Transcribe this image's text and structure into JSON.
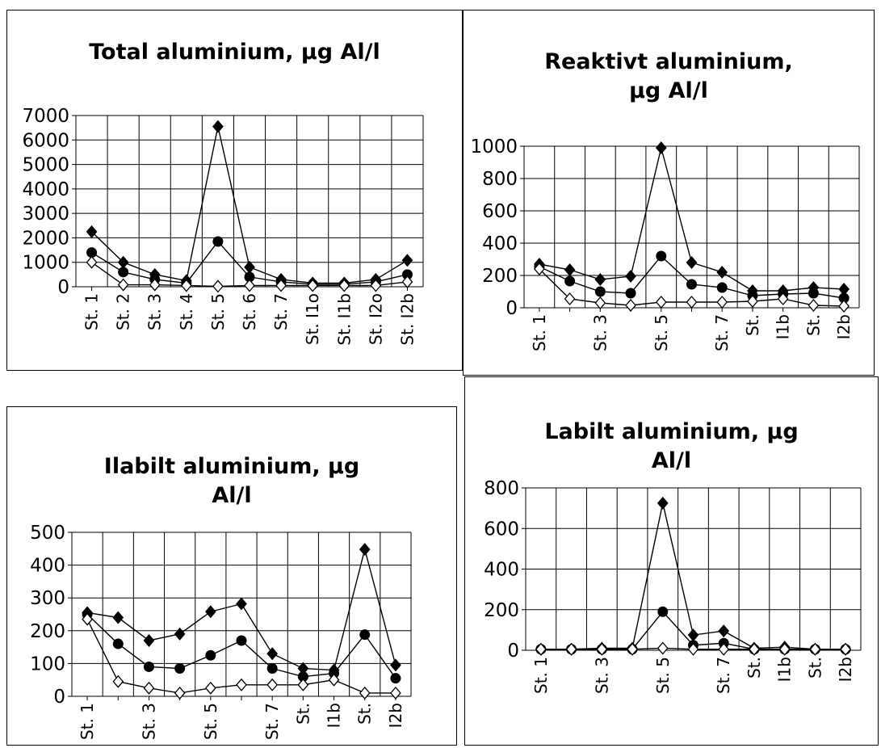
{
  "chart_data": [
    {
      "type": "line",
      "title_lines": [
        "Total aluminium, µg Al/l"
      ],
      "categories": [
        "St. 1",
        "St. 2",
        "St. 3",
        "St. 4",
        "St. 5",
        "St. 6",
        "St. 7",
        "St. I1o",
        "St. I1b",
        "St. I2o",
        "St. I2b"
      ],
      "y_ticks": [
        "0",
        "1000",
        "2000",
        "3000",
        "4000",
        "5000",
        "6000",
        "7000"
      ],
      "ylim": [
        0,
        7000
      ],
      "grid": true,
      "series": [
        {
          "marker": "filled-diamond",
          "values": [
            2250,
            1000,
            500,
            250,
            6550,
            800,
            300,
            150,
            150,
            300,
            1080
          ]
        },
        {
          "marker": "filled-circle",
          "values": [
            1400,
            600,
            300,
            150,
            1850,
            400,
            200,
            100,
            100,
            200,
            500
          ]
        },
        {
          "marker": "open-diamond",
          "values": [
            1000,
            80,
            80,
            50,
            20,
            50,
            50,
            50,
            50,
            50,
            200
          ]
        }
      ]
    },
    {
      "type": "line",
      "title_lines": [
        "Reaktivt aluminium,",
        "µg Al/l"
      ],
      "categories": [
        "St. 1",
        "",
        "St. 3",
        "",
        "St. 5",
        "",
        "St. 7",
        "St.",
        "I1b",
        "St.",
        "I2b"
      ],
      "y_ticks": [
        "0",
        "200",
        "400",
        "600",
        "800",
        "1000"
      ],
      "ylim": [
        0,
        1000
      ],
      "grid": true,
      "series": [
        {
          "marker": "filled-diamond",
          "values": [
            270,
            235,
            175,
            195,
            990,
            280,
            220,
            105,
            105,
            125,
            115
          ]
        },
        {
          "marker": "filled-circle",
          "values": [
            255,
            165,
            100,
            90,
            320,
            145,
            125,
            75,
            85,
            90,
            60
          ]
        },
        {
          "marker": "open-diamond",
          "values": [
            240,
            55,
            30,
            15,
            35,
            35,
            35,
            40,
            55,
            15,
            10
          ]
        }
      ]
    },
    {
      "type": "line",
      "title_lines": [
        "Ilabilt aluminium, µg",
        "Al/l"
      ],
      "categories": [
        "St. 1",
        "",
        "St. 3",
        "",
        "St. 5",
        "",
        "St. 7",
        "St.",
        "I1b",
        "St.",
        "I2b"
      ],
      "y_ticks": [
        "0",
        "100",
        "200",
        "300",
        "400",
        "500"
      ],
      "ylim": [
        0,
        500
      ],
      "grid": true,
      "series": [
        {
          "marker": "filled-diamond",
          "values": [
            255,
            240,
            170,
            190,
            258,
            282,
            130,
            85,
            80,
            448,
            95
          ]
        },
        {
          "marker": "filled-circle",
          "values": [
            250,
            160,
            90,
            85,
            125,
            170,
            85,
            60,
            70,
            188,
            55
          ]
        },
        {
          "marker": "open-diamond",
          "values": [
            235,
            45,
            25,
            10,
            25,
            35,
            35,
            35,
            50,
            10,
            10
          ]
        }
      ]
    },
    {
      "type": "line",
      "title_lines": [
        "Labilt aluminium, µg",
        "Al/l"
      ],
      "categories": [
        "St. 1",
        "",
        "St. 3",
        "",
        "St. 5",
        "",
        "St. 7",
        "St.",
        "I1b",
        "St.",
        "I2b"
      ],
      "y_ticks": [
        "0",
        "200",
        "400",
        "600",
        "800"
      ],
      "ylim": [
        0,
        800
      ],
      "grid": true,
      "series": [
        {
          "marker": "filled-diamond",
          "values": [
            5,
            5,
            10,
            10,
            725,
            75,
            95,
            10,
            15,
            5,
            5
          ]
        },
        {
          "marker": "filled-circle",
          "values": [
            5,
            5,
            5,
            5,
            190,
            25,
            35,
            5,
            5,
            5,
            5
          ]
        },
        {
          "marker": "open-diamond",
          "values": [
            5,
            5,
            5,
            5,
            10,
            5,
            5,
            5,
            5,
            5,
            5
          ]
        }
      ]
    }
  ]
}
